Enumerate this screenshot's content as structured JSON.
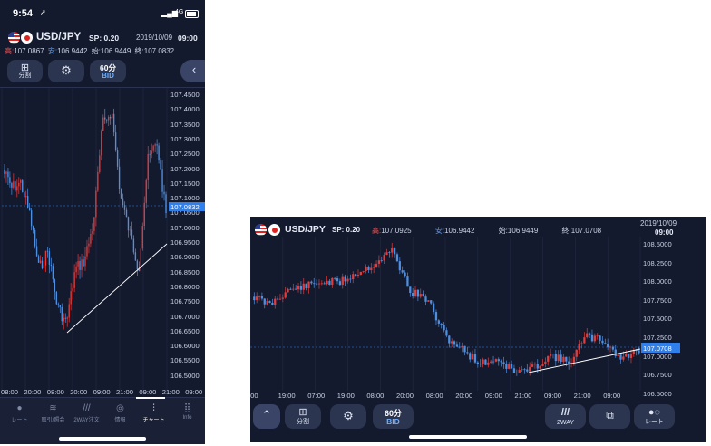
{
  "phone": {
    "status": {
      "time": "9:54",
      "location_icon": "location-arrow-icon",
      "network": "4G"
    },
    "header": {
      "pair": "USD/JPY",
      "spread": "SP: 0.20",
      "date": "2019/10/09",
      "time": "09:00",
      "high_label": "高:",
      "high": "107.0867",
      "low_label": "安:",
      "low": "106.9442",
      "open_label": "始:",
      "open": "106.9449",
      "close_label": "終:",
      "close": "107.0832"
    },
    "toolbar": {
      "split_label": "分割",
      "interval": "60分",
      "price_type": "BID"
    },
    "price_axis": [
      "107.4500",
      "107.4000",
      "107.3500",
      "107.3000",
      "107.2500",
      "107.2000",
      "107.1500",
      "107.1000",
      "107.0500",
      "107.0000",
      "106.9500",
      "106.9000",
      "106.8500",
      "106.8000",
      "106.7500",
      "106.7000",
      "106.6500",
      "106.6000",
      "106.5500",
      "106.5000"
    ],
    "current_price": "107.0832",
    "time_axis": [
      "08:00",
      "20:00",
      "08:00",
      "20:00",
      "09:00",
      "21:00",
      "09:00",
      "21:00",
      "09:00"
    ],
    "tabs": [
      {
        "label": "レート",
        "icon": "rate-icon"
      },
      {
        "label": "取引/照会",
        "icon": "trade-icon"
      },
      {
        "label": "2WAY注文",
        "icon": "twoway-icon"
      },
      {
        "label": "情報",
        "icon": "info-globe-icon"
      },
      {
        "label": "チャート",
        "icon": "chart-icon"
      },
      {
        "label": "Info",
        "icon": "grid-icon"
      }
    ]
  },
  "landscape": {
    "header": {
      "pair": "USD/JPY",
      "spread": "SP: 0.20",
      "high_label": "高:",
      "high": "107.0925",
      "low_label": "安:",
      "low": "106.9442",
      "open_label": "始:",
      "open": "106.9449",
      "close_label": "終:",
      "close": "107.0708",
      "date": "2019/10/09",
      "time": "09:00"
    },
    "price_axis": [
      "108.5000",
      "108.2500",
      "108.0000",
      "107.7500",
      "107.5000",
      "107.2500",
      "107.0000",
      "106.7500",
      "106.5000"
    ],
    "current_price": "107.0708",
    "time_axis": [
      ":00",
      "19:00",
      "07:00",
      "19:00",
      "08:00",
      "20:00",
      "08:00",
      "20:00",
      "09:00",
      "21:00",
      "09:00",
      "21:00",
      "09:00"
    ],
    "toolbar": {
      "split_label": "分割",
      "interval": "60分",
      "price_type": "BID",
      "twoway_label": "2WAY",
      "rate_label": "レート"
    }
  },
  "colors": {
    "bg": "#141a2e",
    "up": "#e23b3b",
    "down": "#4f8fe0",
    "highlight": "#2f80ed"
  }
}
